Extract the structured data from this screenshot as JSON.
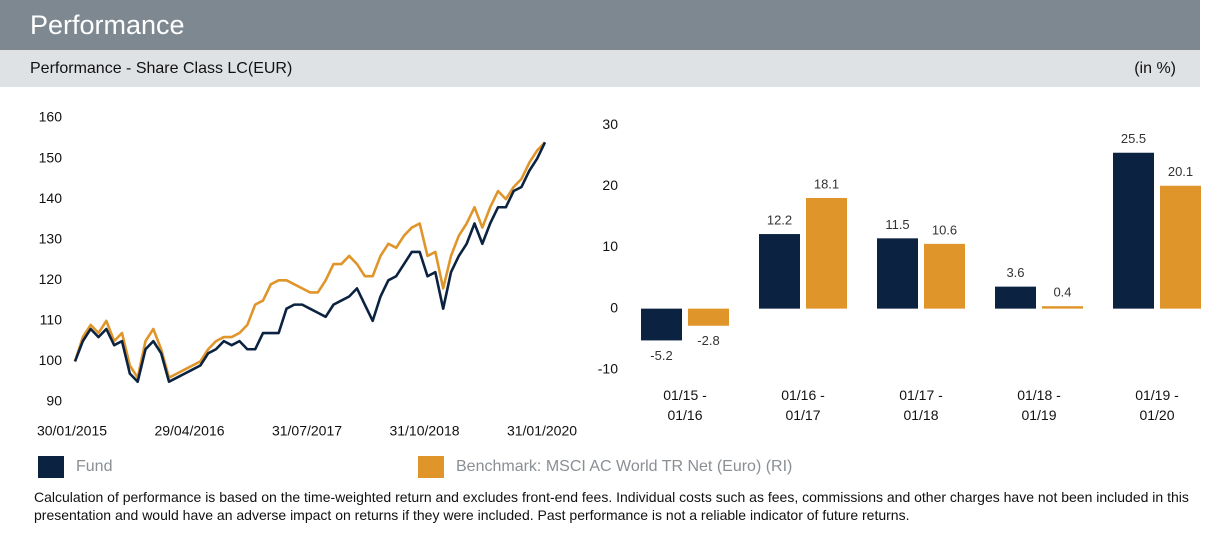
{
  "header": {
    "title": "Performance",
    "subtitle": "Performance - Share Class LC(EUR)",
    "unit": "(in %)"
  },
  "chart_data": [
    {
      "type": "line",
      "x": [
        "2015-01",
        "2015-02",
        "2015-03",
        "2015-04",
        "2015-05",
        "2015-06",
        "2015-07",
        "2015-08",
        "2015-09",
        "2015-10",
        "2015-11",
        "2015-12",
        "2016-01",
        "2016-02",
        "2016-03",
        "2016-04",
        "2016-05",
        "2016-06",
        "2016-07",
        "2016-08",
        "2016-09",
        "2016-10",
        "2016-11",
        "2016-12",
        "2017-01",
        "2017-02",
        "2017-03",
        "2017-04",
        "2017-05",
        "2017-06",
        "2017-07",
        "2017-08",
        "2017-09",
        "2017-10",
        "2017-11",
        "2017-12",
        "2018-01",
        "2018-02",
        "2018-03",
        "2018-04",
        "2018-05",
        "2018-06",
        "2018-07",
        "2018-08",
        "2018-09",
        "2018-10",
        "2018-11",
        "2018-12",
        "2019-01",
        "2019-02",
        "2019-03",
        "2019-04",
        "2019-05",
        "2019-06",
        "2019-07",
        "2019-08",
        "2019-09",
        "2019-10",
        "2019-11",
        "2019-12",
        "2020-01"
      ],
      "xlim": [
        "2015-01",
        "2020-01"
      ],
      "xticks": [
        {
          "value": "2015-01",
          "label": "30/01/2015"
        },
        {
          "value": "2016-04",
          "label": "29/04/2016"
        },
        {
          "value": "2017-07",
          "label": "31/07/2017"
        },
        {
          "value": "2018-10",
          "label": "31/10/2018"
        },
        {
          "value": "2020-01",
          "label": "31/01/2020"
        }
      ],
      "ylim": [
        90,
        160
      ],
      "yticks": [
        90,
        100,
        110,
        120,
        130,
        140,
        150,
        160
      ],
      "grid": false,
      "series": [
        {
          "name": "Fund",
          "color": "#0b2341",
          "values": [
            100,
            105,
            108,
            106,
            108,
            104,
            105,
            97,
            95,
            103,
            105,
            102,
            95,
            96,
            97,
            98,
            99,
            102,
            103,
            105,
            104,
            105,
            103,
            103,
            107,
            107,
            107,
            113,
            114,
            114,
            113,
            112,
            111,
            114,
            115,
            116,
            118,
            114,
            110,
            116,
            120,
            121,
            124,
            127,
            127,
            121,
            122,
            113,
            122,
            126,
            129,
            134,
            129,
            134,
            138,
            138,
            142,
            143,
            147,
            150,
            154
          ]
        },
        {
          "name": "Benchmark: MSCI AC World TR Net (Euro) (RI)",
          "color": "#e0952b",
          "values": [
            100,
            106,
            109,
            107,
            110,
            105,
            107,
            99,
            96,
            105,
            108,
            103,
            96,
            97,
            98,
            99,
            100,
            103,
            105,
            106,
            106,
            107,
            109,
            114,
            115,
            119,
            120,
            120,
            119,
            118,
            117,
            117,
            120,
            124,
            124,
            126,
            124,
            121,
            121,
            126,
            129,
            128,
            131,
            133,
            134,
            126,
            127,
            118,
            126,
            131,
            134,
            138,
            133,
            138,
            142,
            140,
            143,
            145,
            149,
            152,
            154
          ]
        }
      ]
    },
    {
      "type": "bar",
      "categories": [
        "01/15 - 01/16",
        "01/16 - 01/17",
        "01/17 - 01/18",
        "01/18 - 01/19",
        "01/19 - 01/20"
      ],
      "ylim": [
        -12,
        32
      ],
      "yticks": [
        -10,
        0,
        10,
        20,
        30
      ],
      "grid": false,
      "series": [
        {
          "color": "#0b2341",
          "values": [
            -5.2,
            12.2,
            11.5,
            3.6,
            25.5
          ]
        },
        {
          "color": "#e0952b",
          "values": [
            -2.8,
            18.1,
            10.6,
            0.4,
            20.1
          ]
        }
      ]
    }
  ],
  "footnote": "Calculation of performance is based on the time-weighted return and excludes front-end fees. Individual costs such as fees, commissions and other charges have not been included in this presentation and would have an adverse impact on returns if they were included. Past performance is not a reliable indicator of future returns."
}
